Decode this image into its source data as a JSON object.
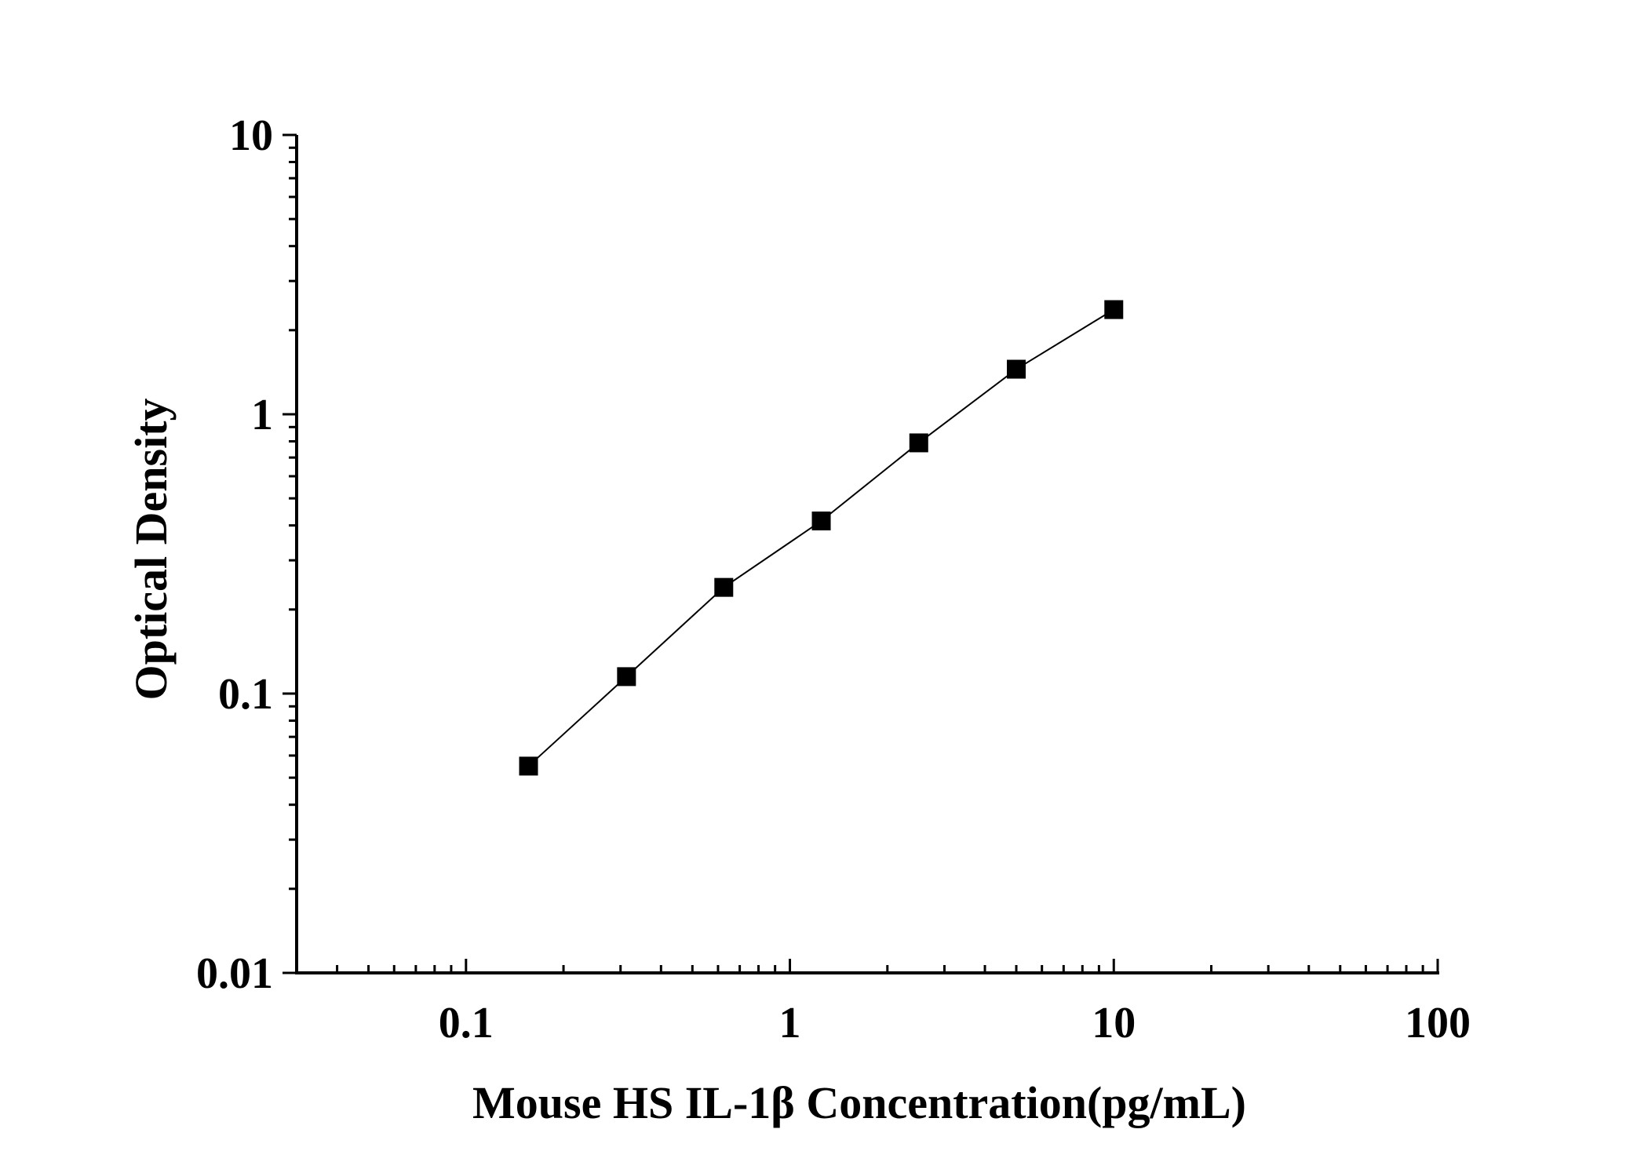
{
  "chart_data": {
    "type": "scatter",
    "title": "",
    "xlabel": "Mouse HS IL-1β Concentration(pg/mL)",
    "ylabel": "Optical Density",
    "x_scale": "log",
    "y_scale": "log",
    "xlim": [
      0.03,
      100
    ],
    "ylim": [
      0.01,
      10
    ],
    "x_ticks": [
      {
        "value": 0.1,
        "label": "0.1"
      },
      {
        "value": 1,
        "label": "1"
      },
      {
        "value": 10,
        "label": "10"
      },
      {
        "value": 100,
        "label": "100"
      }
    ],
    "y_ticks": [
      {
        "value": 0.01,
        "label": "0.01"
      },
      {
        "value": 0.1,
        "label": "0.1"
      },
      {
        "value": 1,
        "label": "1"
      },
      {
        "value": 10,
        "label": "10"
      }
    ],
    "grid": false,
    "legend": "none",
    "marker": "square",
    "connect_points": true,
    "color": "#000000",
    "series": [
      {
        "x": [
          0.156,
          0.313,
          0.625,
          1.25,
          2.5,
          5,
          10
        ],
        "y": [
          0.055,
          0.115,
          0.24,
          0.415,
          0.79,
          1.45,
          2.37
        ]
      }
    ]
  }
}
